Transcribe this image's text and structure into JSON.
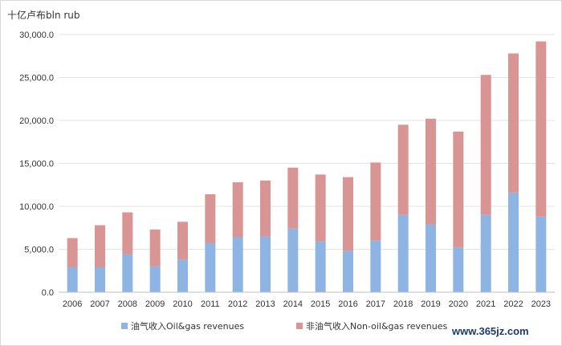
{
  "chart_data": {
    "type": "bar",
    "stacked": true,
    "unit_label": "十亿卢布bln rub",
    "categories": [
      "2006",
      "2007",
      "2008",
      "2009",
      "2010",
      "2011",
      "2012",
      "2013",
      "2014",
      "2015",
      "2016",
      "2017",
      "2018",
      "2019",
      "2020",
      "2021",
      "2022",
      "2023"
    ],
    "series": [
      {
        "name": "油气收入Oil&gas revenues",
        "color": "#8eb4e3",
        "values": [
          2900,
          2900,
          4400,
          3000,
          3800,
          5700,
          6400,
          6500,
          7400,
          5900,
          4800,
          6000,
          9000,
          7900,
          5200,
          9000,
          11600,
          8800
        ]
      },
      {
        "name": "非油气收入Non-oil&gas revenues",
        "color": "#d99594",
        "values": [
          3400,
          4900,
          4900,
          4300,
          4400,
          5700,
          6400,
          6500,
          7100,
          7800,
          8600,
          9100,
          10500,
          12300,
          13500,
          16300,
          16200,
          20400
        ]
      }
    ],
    "ylim": [
      0,
      30000
    ],
    "yticks": [
      "0.0",
      "5,000.0",
      "10,000.0",
      "15,000.0",
      "20,000.0",
      "25,000.0",
      "30,000.0"
    ],
    "ytick_values": [
      0,
      5000,
      10000,
      15000,
      20000,
      25000,
      30000
    ],
    "grid": true,
    "legend_position": "bottom"
  },
  "watermark": "www.365jz.com"
}
